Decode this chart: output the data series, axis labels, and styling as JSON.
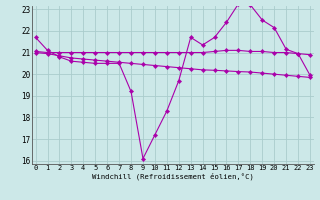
{
  "bg_color": "#cce8e8",
  "grid_color": "#aacccc",
  "line_color": "#aa00aa",
  "line1_x": [
    0,
    1,
    2,
    3,
    4,
    5,
    6,
    7,
    8,
    9,
    10,
    11,
    12,
    13,
    14,
    15,
    16,
    17,
    18,
    19,
    20,
    21,
    22,
    23
  ],
  "line1_y": [
    21.7,
    21.1,
    20.8,
    20.6,
    20.55,
    20.5,
    20.5,
    20.5,
    19.2,
    16.1,
    17.2,
    18.3,
    19.7,
    21.7,
    21.35,
    21.7,
    22.4,
    23.25,
    23.2,
    22.5,
    22.15,
    21.15,
    20.95,
    19.95
  ],
  "line2_x": [
    0,
    1,
    2,
    3,
    4,
    5,
    6,
    7,
    8,
    9,
    10,
    11,
    12,
    13,
    14,
    15,
    16,
    17,
    18,
    19,
    20,
    21,
    22,
    23
  ],
  "line2_y": [
    21.0,
    20.95,
    20.85,
    20.75,
    20.7,
    20.65,
    20.6,
    20.55,
    20.5,
    20.45,
    20.4,
    20.35,
    20.3,
    20.25,
    20.2,
    20.18,
    20.15,
    20.12,
    20.1,
    20.05,
    20.0,
    19.95,
    19.9,
    19.85
  ],
  "line3_x": [
    0,
    1,
    2,
    3,
    4,
    5,
    6,
    7,
    8,
    9,
    10,
    11,
    12,
    13,
    14,
    15,
    16,
    17,
    18,
    19,
    20,
    21,
    22,
    23
  ],
  "line3_y": [
    21.05,
    21.0,
    21.0,
    21.0,
    21.0,
    21.0,
    21.0,
    21.0,
    21.0,
    21.0,
    21.0,
    21.0,
    21.0,
    21.0,
    21.0,
    21.05,
    21.1,
    21.1,
    21.05,
    21.05,
    21.0,
    21.0,
    20.95,
    20.9
  ],
  "xmin": 0,
  "xmax": 23,
  "ymin": 16,
  "ymax": 23,
  "yticks": [
    16,
    17,
    18,
    19,
    20,
    21,
    22,
    23
  ],
  "xticks": [
    0,
    1,
    2,
    3,
    4,
    5,
    6,
    7,
    8,
    9,
    10,
    11,
    12,
    13,
    14,
    15,
    16,
    17,
    18,
    19,
    20,
    21,
    22,
    23
  ],
  "xlabel": "Windchill (Refroidissement éolien,°C)",
  "marker": "D",
  "marker_size": 2.2,
  "linewidth": 0.8,
  "tick_fontsize": 5.0,
  "xlabel_fontsize": 5.2
}
